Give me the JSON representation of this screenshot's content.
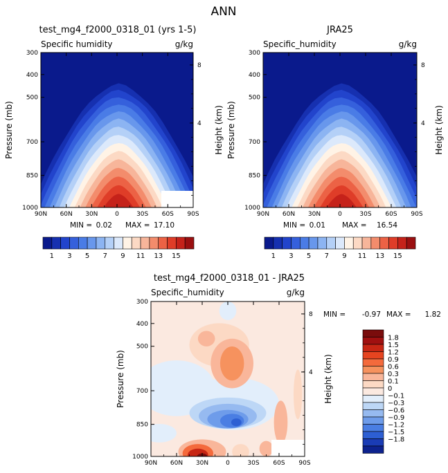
{
  "main_title": "ANN",
  "colors": {
    "humidity_scale": [
      "#0a1a8c",
      "#1630b0",
      "#2244cc",
      "#3560dc",
      "#4a7ce6",
      "#6897ec",
      "#8cb4f2",
      "#b4d0f7",
      "#dce9fb",
      "#fff3e6",
      "#fcd9c4",
      "#f7b59a",
      "#f38c6c",
      "#ec6245",
      "#df3d28",
      "#c5221a",
      "#9a0f10"
    ],
    "diff_scale": [
      "#7a0c0c",
      "#a01010",
      "#c72614",
      "#e64420",
      "#f46a3c",
      "#f6925e",
      "#f9b69a",
      "#fcd9c4",
      "#fbe9e0",
      "#e2eefb",
      "#bdd7f6",
      "#96baf0",
      "#6e9cea",
      "#4a7ee3",
      "#2d5fd3",
      "#1a3cb5",
      "#0d228e"
    ]
  },
  "chart_data": [
    {
      "type": "heatmap",
      "title": "test_mg4_f2000_0318_01 (yrs 1-5)",
      "subtitle_left": "Specific humidity",
      "subtitle_right": "g/kg",
      "xlabel": "",
      "ylabel": "Pressure (mb)",
      "ylabel_right": "Height (km)",
      "x_ticks": [
        "90N",
        "60N",
        "30N",
        "0",
        "30S",
        "60S",
        "90S"
      ],
      "y_ticks": [
        "300",
        "400",
        "500",
        "700",
        "850",
        "1000"
      ],
      "right_ticks": [
        "8",
        "4"
      ],
      "min_label": "MIN =",
      "min_value": "0.02",
      "max_label": "MAX =",
      "max_value": "17.10",
      "peak_value": 17.1,
      "colorbar_labels": [
        "1",
        "3",
        "5",
        "7",
        "9",
        "11",
        "13",
        "15"
      ]
    },
    {
      "type": "heatmap",
      "title": "JRA25",
      "subtitle_left": "Specific_humidity",
      "subtitle_right": "g/kg",
      "xlabel": "",
      "ylabel": "Pressure (mb)",
      "ylabel_right": "Height (km)",
      "x_ticks": [
        "90N",
        "60N",
        "30N",
        "0",
        "30S",
        "60S",
        "90S"
      ],
      "y_ticks": [
        "300",
        "400",
        "500",
        "700",
        "850",
        "1000"
      ],
      "right_ticks": [
        "8",
        "4"
      ],
      "min_label": "MIN =",
      "min_value": "0.01",
      "max_label": "MAX =",
      "max_value": "16.54",
      "peak_value": 16.54,
      "colorbar_labels": [
        "1",
        "3",
        "5",
        "7",
        "9",
        "11",
        "13",
        "15"
      ]
    },
    {
      "type": "heatmap",
      "title": "test_mg4_f2000_0318_01 - JRA25",
      "subtitle_left": "Specific_humidity",
      "subtitle_right": "g/kg",
      "xlabel": "",
      "ylabel": "Pressure (mb)",
      "ylabel_right": "Height (km)",
      "x_ticks": [
        "90N",
        "60N",
        "30N",
        "0",
        "30S",
        "60S",
        "90S"
      ],
      "y_ticks": [
        "300",
        "400",
        "500",
        "700",
        "850",
        "1000"
      ],
      "right_ticks": [
        "8",
        "4"
      ],
      "min_label": "MIN =",
      "min_value": "-0.97",
      "max_label": "MAX =",
      "max_value": "1.82",
      "colorbar_labels": [
        "1.8",
        "1.5",
        "1.2",
        "0.9",
        "0.6",
        "0.3",
        "0.1",
        "0",
        "−0.1",
        "−0.3",
        "−0.6",
        "−0.9",
        "−1.2",
        "−1.5",
        "−1.8"
      ]
    }
  ]
}
